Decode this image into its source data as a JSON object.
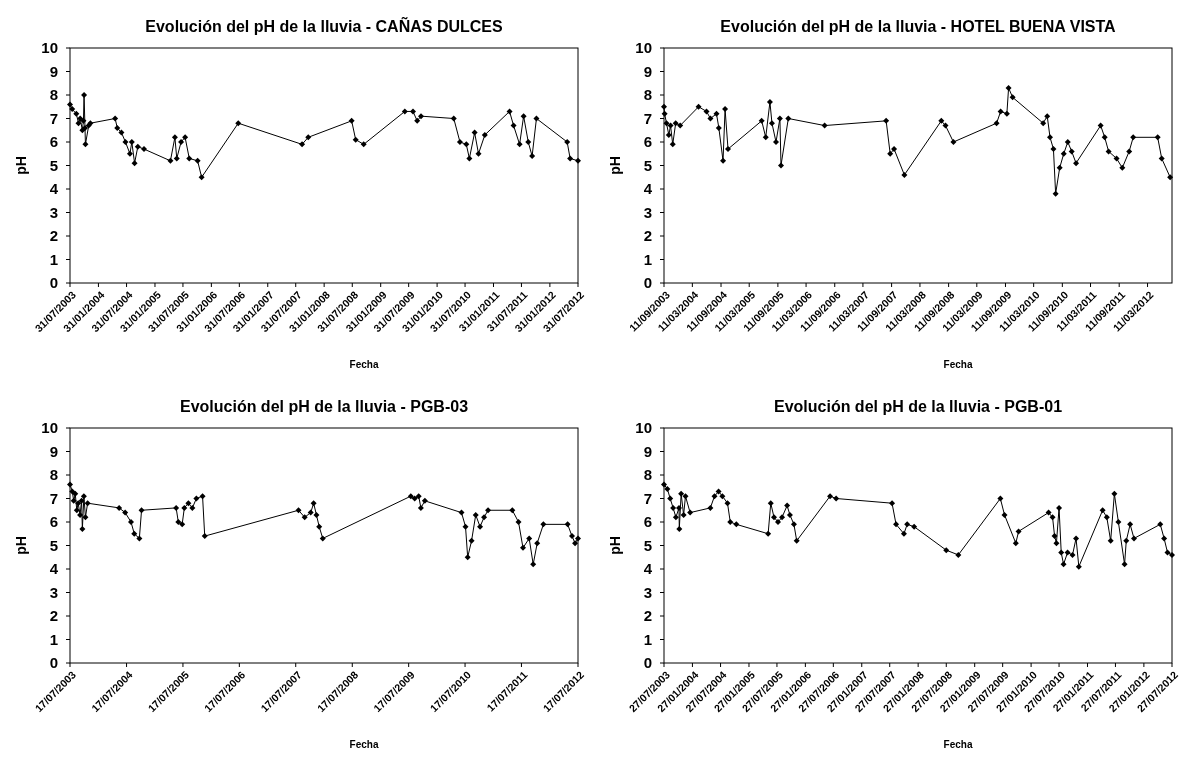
{
  "chart_data": [
    {
      "type": "line",
      "title": "Evolución del pH de la lluvia - CAÑAS DULCES",
      "xlabel": "Fecha",
      "ylabel": "pH",
      "marker": "diamond",
      "line_style": "solid",
      "xlim": [
        "2003-07-31",
        "2012-07-31"
      ],
      "xticks": [
        {
          "value": "2003-07-31",
          "label": "31/07/2003"
        },
        {
          "value": "2004-01-31",
          "label": "31/01/2004"
        },
        {
          "value": "2004-07-31",
          "label": "31/07/2004"
        },
        {
          "value": "2005-01-31",
          "label": "31/01/2005"
        },
        {
          "value": "2005-07-31",
          "label": "31/07/2005"
        },
        {
          "value": "2006-01-31",
          "label": "31/01/2006"
        },
        {
          "value": "2006-07-31",
          "label": "31/07/2006"
        },
        {
          "value": "2007-01-31",
          "label": "31/01/2007"
        },
        {
          "value": "2007-07-31",
          "label": "31/07/2007"
        },
        {
          "value": "2008-01-31",
          "label": "31/01/2008"
        },
        {
          "value": "2008-07-31",
          "label": "31/07/2008"
        },
        {
          "value": "2009-01-31",
          "label": "31/01/2009"
        },
        {
          "value": "2009-07-31",
          "label": "31/07/2009"
        },
        {
          "value": "2010-01-31",
          "label": "31/01/2010"
        },
        {
          "value": "2010-07-31",
          "label": "31/07/2010"
        },
        {
          "value": "2011-01-31",
          "label": "31/01/2011"
        },
        {
          "value": "2011-07-31",
          "label": "31/07/2011"
        },
        {
          "value": "2012-01-31",
          "label": "31/01/2012"
        },
        {
          "value": "2012-07-31",
          "label": "31/07/2012"
        }
      ],
      "ylim": [
        0,
        10
      ],
      "yticks": [
        0,
        1,
        2,
        3,
        4,
        5,
        6,
        7,
        8,
        9,
        10
      ],
      "x": [
        "2003-07-31",
        "2003-08-14",
        "2003-09-10",
        "2003-09-24",
        "2003-10-05",
        "2003-10-19",
        "2003-10-26",
        "2003-10-30",
        "2003-11-05",
        "2003-11-08",
        "2003-11-29",
        "2003-12-10",
        "2004-05-18",
        "2004-06-01",
        "2004-06-28",
        "2004-07-24",
        "2004-08-22",
        "2004-09-03",
        "2004-09-21",
        "2004-10-12",
        "2004-11-21",
        "2005-05-11",
        "2005-06-09",
        "2005-06-21",
        "2005-07-19",
        "2005-08-14",
        "2005-09-10",
        "2005-11-03",
        "2005-11-29",
        "2006-07-24",
        "2007-09-10",
        "2007-10-20",
        "2008-07-27",
        "2008-08-22",
        "2008-10-13",
        "2009-07-06",
        "2009-08-28",
        "2009-09-24",
        "2009-10-19",
        "2010-05-19",
        "2010-06-28",
        "2010-08-08",
        "2010-08-28",
        "2010-10-01",
        "2010-10-26",
        "2010-12-06",
        "2011-05-15",
        "2011-06-10",
        "2011-07-19",
        "2011-08-14",
        "2011-09-13",
        "2011-10-08",
        "2011-11-05",
        "2012-05-22",
        "2012-06-10",
        "2012-07-31"
      ],
      "series": [
        {
          "color": "#000000",
          "values": [
            7.6,
            7.4,
            7.2,
            6.8,
            7.0,
            6.5,
            6.9,
            8.0,
            6.6,
            5.9,
            6.7,
            6.8,
            7.0,
            6.6,
            6.4,
            6.0,
            5.5,
            6.0,
            5.1,
            5.8,
            5.7,
            5.2,
            6.2,
            5.3,
            6.0,
            6.2,
            5.3,
            5.2,
            4.5,
            6.8,
            5.9,
            6.2,
            6.9,
            6.1,
            5.9,
            7.3,
            7.3,
            6.9,
            7.1,
            7.0,
            6.0,
            5.9,
            5.3,
            6.4,
            5.5,
            6.3,
            7.3,
            6.7,
            5.9,
            7.1,
            6.0,
            5.4,
            7.0,
            6.0,
            5.3,
            5.2
          ]
        }
      ]
    },
    {
      "type": "line",
      "title": "Evolución del pH de la lluvia - HOTEL BUENA VISTA",
      "xlabel": "Fecha",
      "ylabel": "pH",
      "marker": "diamond",
      "line_style": "solid",
      "xlim": [
        "2003-09-11",
        "2012-08-15"
      ],
      "xticks": [
        {
          "value": "2003-09-11",
          "label": "11/09/2003"
        },
        {
          "value": "2004-03-11",
          "label": "11/03/2004"
        },
        {
          "value": "2004-09-11",
          "label": "11/09/2004"
        },
        {
          "value": "2005-03-11",
          "label": "11/03/2005"
        },
        {
          "value": "2005-09-11",
          "label": "11/09/2005"
        },
        {
          "value": "2006-03-11",
          "label": "11/03/2006"
        },
        {
          "value": "2006-09-11",
          "label": "11/09/2006"
        },
        {
          "value": "2007-03-11",
          "label": "11/03/2007"
        },
        {
          "value": "2007-09-11",
          "label": "11/09/2007"
        },
        {
          "value": "2008-03-11",
          "label": "11/03/2008"
        },
        {
          "value": "2008-09-11",
          "label": "11/09/2008"
        },
        {
          "value": "2009-03-11",
          "label": "11/03/2009"
        },
        {
          "value": "2009-09-11",
          "label": "11/09/2009"
        },
        {
          "value": "2010-03-11",
          "label": "11/03/2010"
        },
        {
          "value": "2010-09-11",
          "label": "11/09/2010"
        },
        {
          "value": "2011-03-11",
          "label": "11/03/2011"
        },
        {
          "value": "2011-09-11",
          "label": "11/09/2011"
        },
        {
          "value": "2012-03-11",
          "label": "11/03/2012"
        }
      ],
      "ylim": [
        0,
        10
      ],
      "yticks": [
        0,
        1,
        2,
        3,
        4,
        5,
        6,
        7,
        8,
        9,
        10
      ],
      "x": [
        "2003-09-11",
        "2003-09-15",
        "2003-09-27",
        "2003-10-12",
        "2003-10-23",
        "2003-11-06",
        "2003-11-25",
        "2003-12-24",
        "2004-04-20",
        "2004-06-10",
        "2004-07-05",
        "2004-08-13",
        "2004-08-28",
        "2004-09-24",
        "2004-10-07",
        "2004-10-26",
        "2005-05-30",
        "2005-06-25",
        "2005-07-22",
        "2005-08-04",
        "2005-08-30",
        "2005-09-24",
        "2005-10-01",
        "2005-11-17",
        "2006-07-08",
        "2007-08-07",
        "2007-09-02",
        "2007-09-27",
        "2007-12-02",
        "2008-07-26",
        "2008-08-22",
        "2008-10-12",
        "2009-07-16",
        "2009-08-11",
        "2009-09-20",
        "2009-10-01",
        "2009-10-27",
        "2010-05-11",
        "2010-06-06",
        "2010-06-24",
        "2010-07-16",
        "2010-07-30",
        "2010-08-25",
        "2010-09-20",
        "2010-10-16",
        "2010-11-10",
        "2010-12-08",
        "2011-05-15",
        "2011-06-10",
        "2011-07-05",
        "2011-08-25",
        "2011-10-01",
        "2011-11-14",
        "2011-12-10",
        "2012-05-15",
        "2012-06-10",
        "2012-08-03"
      ],
      "series": [
        {
          "color": "#000000",
          "values": [
            7.5,
            7.2,
            6.8,
            6.3,
            6.7,
            5.9,
            6.8,
            6.7,
            7.5,
            7.3,
            7.0,
            7.2,
            6.6,
            5.2,
            7.4,
            5.7,
            6.9,
            6.2,
            7.7,
            6.8,
            6.0,
            7.0,
            5.0,
            7.0,
            6.7,
            6.9,
            5.5,
            5.7,
            4.6,
            6.9,
            6.7,
            6.0,
            6.8,
            7.3,
            7.2,
            8.3,
            7.9,
            6.8,
            7.1,
            6.2,
            5.7,
            3.8,
            4.9,
            5.5,
            6.0,
            5.6,
            5.1,
            6.7,
            6.2,
            5.6,
            5.3,
            4.9,
            5.6,
            6.2,
            6.2,
            5.3,
            4.5
          ]
        }
      ]
    },
    {
      "type": "line",
      "title": "Evolución del pH de la lluvia - PGB-03",
      "xlabel": "Fecha",
      "ylabel": "pH",
      "marker": "diamond",
      "line_style": "solid",
      "xlim": [
        "2003-07-17",
        "2012-07-17"
      ],
      "xticks": [
        {
          "value": "2003-07-17",
          "label": "17/07/2003"
        },
        {
          "value": "2004-07-17",
          "label": "17/07/2004"
        },
        {
          "value": "2005-07-17",
          "label": "17/07/2005"
        },
        {
          "value": "2006-07-17",
          "label": "17/07/2006"
        },
        {
          "value": "2007-07-17",
          "label": "17/07/2007"
        },
        {
          "value": "2008-07-17",
          "label": "17/07/2008"
        },
        {
          "value": "2009-07-17",
          "label": "17/07/2009"
        },
        {
          "value": "2010-07-17",
          "label": "17/07/2010"
        },
        {
          "value": "2011-07-17",
          "label": "17/07/2011"
        },
        {
          "value": "2012-07-17",
          "label": "17/07/2012"
        }
      ],
      "ylim": [
        0,
        10
      ],
      "yticks": [
        0,
        1,
        2,
        3,
        4,
        5,
        6,
        7,
        8,
        9,
        10
      ],
      "x": [
        "2003-07-17",
        "2003-08-01",
        "2003-08-10",
        "2003-08-20",
        "2003-08-30",
        "2003-09-08",
        "2003-09-20",
        "2003-09-30",
        "2003-10-05",
        "2003-10-15",
        "2003-10-25",
        "2003-11-08",
        "2004-05-30",
        "2004-07-08",
        "2004-08-15",
        "2004-09-05",
        "2004-10-08",
        "2004-10-22",
        "2005-06-03",
        "2005-06-17",
        "2005-07-12",
        "2005-07-26",
        "2005-08-21",
        "2005-09-16",
        "2005-10-12",
        "2005-11-21",
        "2005-12-05",
        "2007-08-04",
        "2007-09-13",
        "2007-10-22",
        "2007-11-10",
        "2007-11-28",
        "2007-12-16",
        "2008-01-08",
        "2009-07-31",
        "2009-08-25",
        "2009-09-20",
        "2009-10-04",
        "2009-10-30",
        "2010-06-24",
        "2010-07-20",
        "2010-08-03",
        "2010-08-28",
        "2010-09-24",
        "2010-10-22",
        "2010-11-17",
        "2010-12-13",
        "2011-05-19",
        "2011-06-28",
        "2011-07-27",
        "2011-09-05",
        "2011-10-01",
        "2011-10-27",
        "2011-12-06",
        "2012-05-11",
        "2012-06-08",
        "2012-06-28",
        "2012-07-17"
      ],
      "series": [
        {
          "color": "#000000",
          "values": [
            7.6,
            7.3,
            6.9,
            7.2,
            6.5,
            6.8,
            6.3,
            6.9,
            5.7,
            7.1,
            6.2,
            6.8,
            6.6,
            6.4,
            6.0,
            5.5,
            5.3,
            6.5,
            6.6,
            6.0,
            5.9,
            6.6,
            6.8,
            6.6,
            7.0,
            7.1,
            5.4,
            6.5,
            6.2,
            6.4,
            6.8,
            6.3,
            5.8,
            5.3,
            7.1,
            7.0,
            7.1,
            6.6,
            6.9,
            6.4,
            5.8,
            4.5,
            5.2,
            6.3,
            5.8,
            6.2,
            6.5,
            6.5,
            6.0,
            4.9,
            5.3,
            4.2,
            5.1,
            5.9,
            5.9,
            5.4,
            5.1,
            5.3
          ]
        }
      ]
    },
    {
      "type": "line",
      "title": "Evolución del pH de la lluvia - PGB-01",
      "xlabel": "Fecha",
      "ylabel": "pH",
      "marker": "diamond",
      "line_style": "solid",
      "xlim": [
        "2003-07-27",
        "2012-07-27"
      ],
      "xticks": [
        {
          "value": "2003-07-27",
          "label": "27/07/2003"
        },
        {
          "value": "2004-01-27",
          "label": "27/01/2004"
        },
        {
          "value": "2004-07-27",
          "label": "27/07/2004"
        },
        {
          "value": "2005-01-27",
          "label": "27/01/2005"
        },
        {
          "value": "2005-07-27",
          "label": "27/07/2005"
        },
        {
          "value": "2006-01-27",
          "label": "27/01/2006"
        },
        {
          "value": "2006-07-27",
          "label": "27/07/2006"
        },
        {
          "value": "2007-01-27",
          "label": "27/01/2007"
        },
        {
          "value": "2007-07-27",
          "label": "27/07/2007"
        },
        {
          "value": "2008-01-27",
          "label": "27/01/2008"
        },
        {
          "value": "2008-07-27",
          "label": "27/07/2008"
        },
        {
          "value": "2009-01-27",
          "label": "27/01/2009"
        },
        {
          "value": "2009-07-27",
          "label": "27/07/2009"
        },
        {
          "value": "2010-01-27",
          "label": "27/01/2010"
        },
        {
          "value": "2010-07-27",
          "label": "27/07/2010"
        },
        {
          "value": "2011-01-27",
          "label": "27/01/2011"
        },
        {
          "value": "2011-07-27",
          "label": "27/07/2011"
        },
        {
          "value": "2012-01-27",
          "label": "27/01/2012"
        },
        {
          "value": "2012-07-27",
          "label": "27/07/2012"
        }
      ],
      "ylim": [
        0,
        10
      ],
      "yticks": [
        0,
        1,
        2,
        3,
        4,
        5,
        6,
        7,
        8,
        9,
        10
      ],
      "x": [
        "2003-07-27",
        "2003-08-18",
        "2003-09-05",
        "2003-09-24",
        "2003-10-12",
        "2003-11-01",
        "2003-11-03",
        "2003-11-15",
        "2003-12-01",
        "2003-12-13",
        "2004-01-12",
        "2004-05-22",
        "2004-06-18",
        "2004-07-14",
        "2004-08-08",
        "2004-09-10",
        "2004-09-28",
        "2004-11-06",
        "2005-05-31",
        "2005-06-17",
        "2005-07-08",
        "2005-08-03",
        "2005-08-29",
        "2005-10-01",
        "2005-10-19",
        "2005-11-14",
        "2005-12-02",
        "2006-07-06",
        "2006-08-14",
        "2007-08-11",
        "2007-09-06",
        "2007-10-27",
        "2007-11-17",
        "2008-01-01",
        "2008-07-27",
        "2008-10-13",
        "2009-07-12",
        "2009-08-08",
        "2009-10-20",
        "2009-11-07",
        "2010-05-20",
        "2010-06-15",
        "2010-06-28",
        "2010-07-10",
        "2010-07-27",
        "2010-08-10",
        "2010-08-25",
        "2010-09-20",
        "2010-10-22",
        "2010-11-14",
        "2010-12-02",
        "2011-05-05",
        "2011-06-01",
        "2011-06-26",
        "2011-07-20",
        "2011-08-15",
        "2011-09-24",
        "2011-10-05",
        "2011-10-30",
        "2011-11-24",
        "2012-05-12",
        "2012-06-06",
        "2012-06-28",
        "2012-07-27"
      ],
      "series": [
        {
          "color": "#000000",
          "values": [
            7.6,
            7.4,
            7.0,
            6.6,
            6.2,
            6.6,
            5.7,
            7.2,
            6.3,
            7.1,
            6.4,
            6.6,
            7.1,
            7.3,
            7.1,
            6.8,
            6.0,
            5.9,
            5.5,
            6.8,
            6.2,
            6.0,
            6.2,
            6.7,
            6.3,
            5.9,
            5.2,
            7.1,
            7.0,
            6.8,
            5.9,
            5.5,
            5.9,
            5.8,
            4.8,
            4.6,
            7.0,
            6.3,
            5.1,
            5.6,
            6.4,
            6.2,
            5.4,
            5.1,
            6.6,
            4.7,
            4.2,
            4.7,
            4.6,
            5.3,
            4.1,
            6.5,
            6.2,
            5.2,
            7.2,
            6.0,
            4.2,
            5.2,
            5.9,
            5.3,
            5.9,
            5.3,
            4.7,
            4.6
          ]
        }
      ]
    }
  ]
}
